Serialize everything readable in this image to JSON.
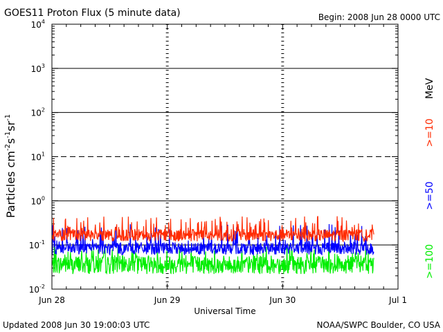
{
  "header": {
    "title": "GOES11 Proton Flux (5 minute data)",
    "begin": "Begin: 2008 Jun 28 0000 UTC"
  },
  "footer": {
    "updated": "Updated 2008 Jun 30 19:00:03 UTC",
    "credit": "NOAA/SWPC Boulder, CO USA"
  },
  "chart_data": {
    "type": "line",
    "title": "GOES11 Proton Flux (5 minute data)",
    "xlabel": "Universal Time",
    "ylabel": "Particles cm⁻²s⁻¹sr⁻¹",
    "y_scale": "log",
    "ylim": [
      0.01,
      10000
    ],
    "y_ticks": [
      {
        "value": 0.01,
        "base": "10",
        "exp": "-2"
      },
      {
        "value": 0.1,
        "base": "10",
        "exp": "-1"
      },
      {
        "value": 1,
        "base": "10",
        "exp": "0"
      },
      {
        "value": 10,
        "base": "10",
        "exp": "1"
      },
      {
        "value": 100,
        "base": "10",
        "exp": "2"
      },
      {
        "value": 1000,
        "base": "10",
        "exp": "3"
      },
      {
        "value": 10000,
        "base": "10",
        "exp": "4"
      }
    ],
    "x_ticks": [
      {
        "label": "Jun 28",
        "day": 0
      },
      {
        "label": "Jun 29",
        "day": 1
      },
      {
        "label": "Jun 30",
        "day": 2
      },
      {
        "label": "Jul 1",
        "day": 3
      }
    ],
    "x_range_days": [
      0,
      3
    ],
    "data_end_day": 2.79,
    "grid": {
      "horizontal_solid": [
        1,
        100,
        1000
      ],
      "horizontal_dashed": [
        10
      ],
      "reference_line": 0.1
    },
    "legend_title": "MeV",
    "series": [
      {
        "name": ">=10",
        "color": "#ff2a00",
        "approx_range": [
          0.12,
          0.45
        ],
        "typical": 0.18
      },
      {
        "name": ">=50",
        "color": "#0000ff",
        "approx_range": [
          0.06,
          0.3
        ],
        "typical": 0.09
      },
      {
        "name": ">=100",
        "color": "#00ee00",
        "approx_range": [
          0.022,
          0.1
        ],
        "typical": 0.04
      }
    ]
  }
}
